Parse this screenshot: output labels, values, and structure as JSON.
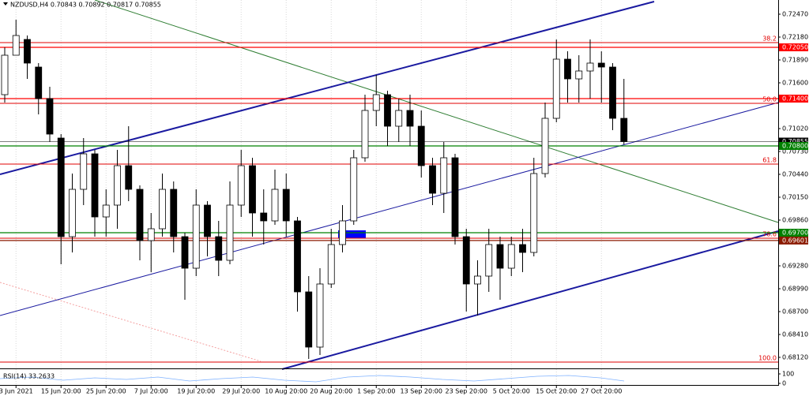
{
  "chart_data": {
    "type": "candlestick",
    "title": "NZDUSD,H4  0.70843 0.70892 0.70817 0.70855",
    "categories": [
      null,
      "3 Jun 2021",
      null,
      null,
      null,
      "15 Jun 20:00",
      null,
      null,
      null,
      "25 Jun 20:00",
      null,
      null,
      null,
      "7 Jul 20:00",
      null,
      null,
      null,
      "19 Jul 20:00",
      null,
      null,
      null,
      "29 Jul 20:00",
      null,
      null,
      null,
      "10 Aug 20:00",
      null,
      null,
      null,
      "20 Aug 20:00",
      null,
      null,
      null,
      "1 Sep 20:00",
      null,
      null,
      null,
      "13 Sep 20:00",
      null,
      null,
      null,
      "23 Sep 20:00",
      null,
      null,
      null,
      "5 Oct 20:00",
      null,
      null,
      null,
      "15 Oct 20:00",
      null,
      null,
      null,
      "27 Oct 20:00",
      null,
      null
    ],
    "open": [
      0.7145,
      0.7195,
      0.7215,
      0.718,
      0.714,
      0.709,
      0.6965,
      0.7025,
      0.707,
      0.699,
      0.7005,
      0.7055,
      0.7025,
      0.696,
      0.6975,
      0.7025,
      0.6965,
      0.6925,
      0.7005,
      0.6965,
      0.6935,
      0.7005,
      0.7055,
      0.6995,
      0.6985,
      0.7025,
      0.6985,
      0.6895,
      0.6825,
      0.6905,
      0.6955,
      0.6985,
      0.7065,
      0.7125,
      0.7145,
      0.7105,
      0.7125,
      0.7105,
      0.7055,
      0.702,
      0.7065,
      0.6965,
      0.6905,
      0.6915,
      0.6955,
      0.6925,
      0.6955,
      0.6945,
      0.7045,
      0.7115,
      0.719,
      0.7165,
      0.7175,
      0.7185,
      0.718,
      0.7115
    ],
    "high": [
      0.7205,
      0.724,
      0.722,
      0.7185,
      0.7155,
      0.7095,
      0.7045,
      0.709,
      0.7075,
      0.7025,
      0.7075,
      0.7105,
      0.703,
      0.6995,
      0.7045,
      0.7035,
      0.697,
      0.7025,
      0.701,
      0.6985,
      0.7035,
      0.7075,
      0.7065,
      0.7025,
      0.705,
      0.7045,
      0.699,
      0.6915,
      0.6925,
      0.6975,
      0.7005,
      0.7075,
      0.7145,
      0.717,
      0.715,
      0.714,
      0.7145,
      0.7125,
      0.7065,
      0.7085,
      0.707,
      0.6975,
      0.6935,
      0.6975,
      0.6965,
      0.6965,
      0.6975,
      0.7065,
      0.7135,
      0.7215,
      0.72,
      0.7195,
      0.7215,
      0.72,
      0.7185,
      0.7165
    ],
    "low": [
      0.7135,
      0.7195,
      0.7165,
      0.712,
      0.7085,
      0.693,
      0.6945,
      0.7005,
      0.6965,
      0.6965,
      0.6975,
      0.701,
      0.6935,
      0.692,
      0.6965,
      0.6945,
      0.6885,
      0.6915,
      0.694,
      0.6915,
      0.693,
      0.699,
      0.6965,
      0.6955,
      0.698,
      0.6965,
      0.687,
      0.681,
      0.6815,
      0.69,
      0.6945,
      0.698,
      0.706,
      0.7105,
      0.708,
      0.7085,
      0.708,
      0.704,
      0.7005,
      0.6995,
      0.6955,
      0.687,
      0.6865,
      0.6895,
      0.6885,
      0.6915,
      0.692,
      0.694,
      0.704,
      0.711,
      0.7135,
      0.7135,
      0.714,
      0.7135,
      0.71,
      0.7082
    ],
    "close": [
      0.7195,
      0.722,
      0.7185,
      0.714,
      0.7095,
      0.6965,
      0.7025,
      0.707,
      0.699,
      0.7005,
      0.7055,
      0.7025,
      0.696,
      0.6975,
      0.7025,
      0.6965,
      0.6925,
      0.7005,
      0.6965,
      0.6935,
      0.7005,
      0.7055,
      0.6995,
      0.6985,
      0.7025,
      0.6985,
      0.6895,
      0.6825,
      0.6905,
      0.6955,
      0.6985,
      0.7065,
      0.7125,
      0.7145,
      0.7105,
      0.7125,
      0.7105,
      0.7055,
      0.702,
      0.7065,
      0.6965,
      0.6905,
      0.6915,
      0.6955,
      0.6925,
      0.6955,
      0.6945,
      0.7045,
      0.7115,
      0.719,
      0.7165,
      0.7175,
      0.7185,
      0.718,
      0.7115,
      0.70855
    ],
    "ylim": [
      0.6799,
      0.7265
    ],
    "yticks": [
      {
        "value": 0.7247,
        "label": "0.72470"
      },
      {
        "value": 0.7218,
        "label": "0.72180"
      },
      {
        "value": 0.7189,
        "label": "0.71890"
      },
      {
        "value": 0.716,
        "label": "0.71600"
      },
      {
        "value": 0.7102,
        "label": "0.71020"
      },
      {
        "value": 0.7073,
        "label": "0.70730"
      },
      {
        "value": 0.7044,
        "label": "0.70440"
      },
      {
        "value": 0.7015,
        "label": "0.70150"
      },
      {
        "value": 0.6986,
        "label": "0.69860"
      },
      {
        "value": 0.6928,
        "label": "0.69280"
      },
      {
        "value": 0.6899,
        "label": "0.68990"
      },
      {
        "value": 0.687,
        "label": "0.68700"
      },
      {
        "value": 0.6841,
        "label": "0.68410"
      },
      {
        "value": 0.6812,
        "label": "0.68120"
      }
    ],
    "levels": [
      {
        "value": 0.7205,
        "label": "0.72050",
        "color": "#ff0000"
      },
      {
        "value": 0.714,
        "label": "0.71400",
        "color": "#ff0000"
      },
      {
        "value": 0.70855,
        "label": "0.70855",
        "color": "#000000"
      },
      {
        "value": 0.708,
        "label": "0.70800",
        "color": "#008000"
      },
      {
        "value": 0.697,
        "label": "0.69700",
        "color": "#008000"
      },
      {
        "value": 0.69601,
        "label": "0.69601",
        "color": "#8b1a00"
      }
    ],
    "fibonacci": [
      {
        "label": "38.2",
        "price": 0.7211
      },
      {
        "label": "50.0",
        "price": 0.7134
      },
      {
        "label": "61.8",
        "price": 0.7057
      },
      {
        "label": "78.6",
        "price": 0.6963
      },
      {
        "label": "100.0",
        "price": 0.6806
      }
    ],
    "rsi": {
      "label": "RSI(14) 33.2633",
      "ylim": [
        0,
        100
      ],
      "yticks": [
        100,
        0
      ]
    }
  }
}
